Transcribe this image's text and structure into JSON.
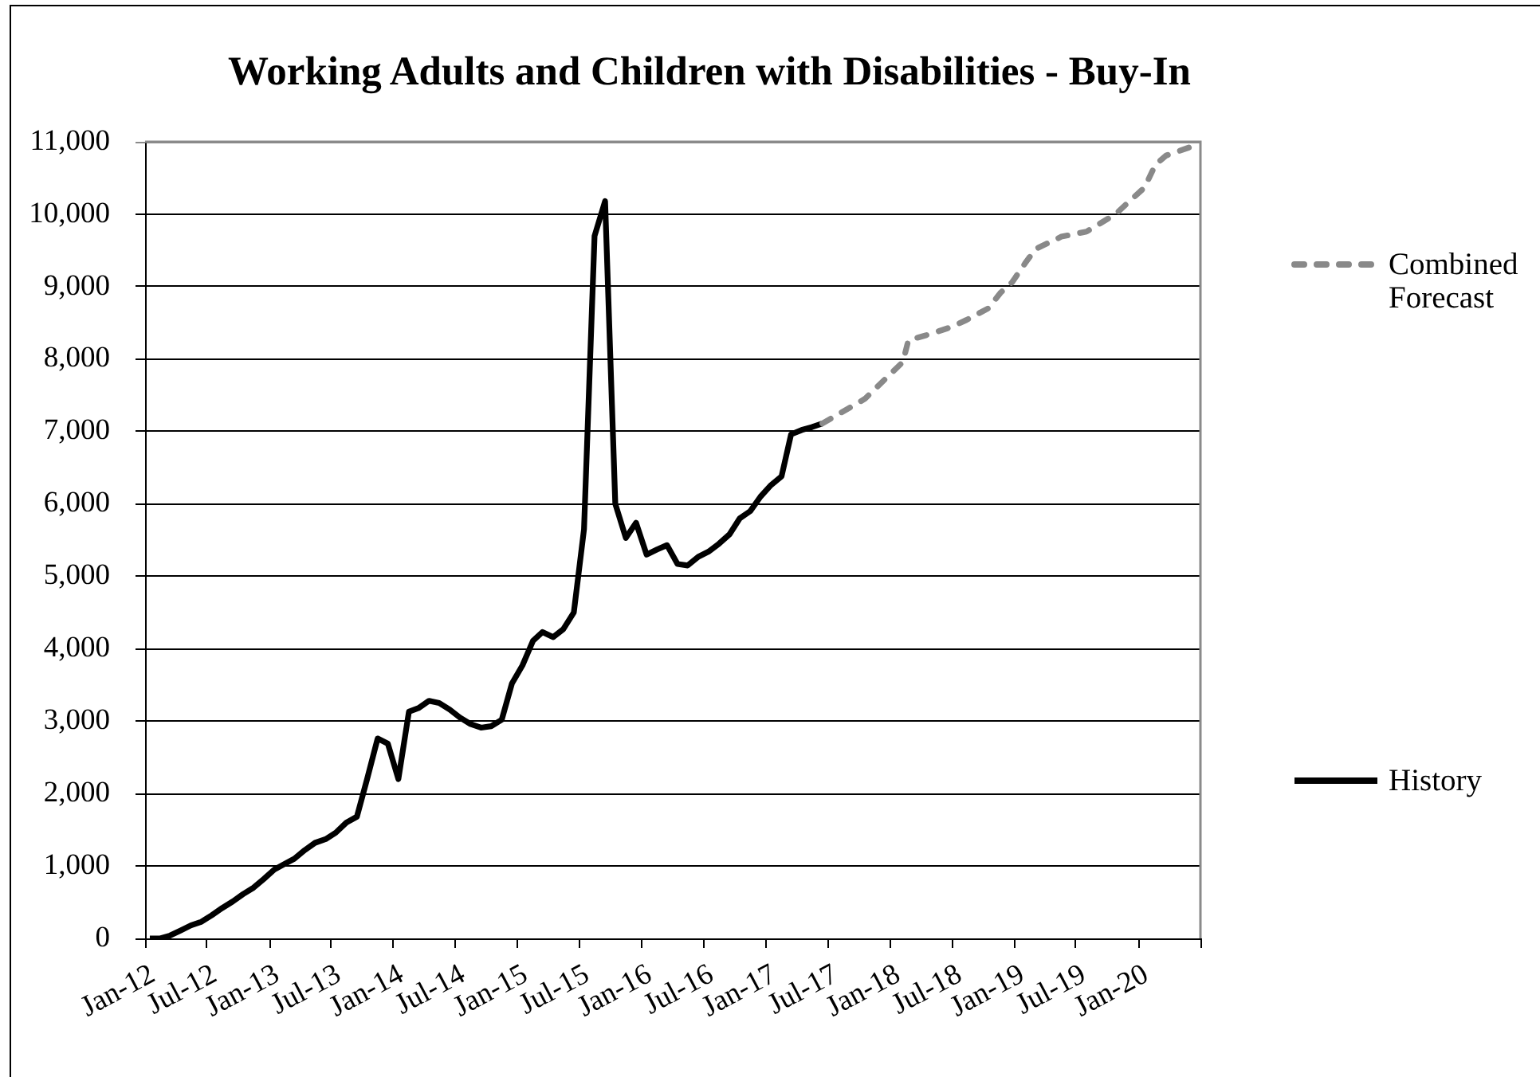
{
  "chart_data": {
    "type": "line",
    "title": "Working Adults and Children with Disabilities - Buy-In",
    "xlim": [
      "2012-01",
      "2020-07"
    ],
    "xticks": [
      {
        "value": "2012-01",
        "label": "Jan-12"
      },
      {
        "value": "2012-07",
        "label": "Jul-12"
      },
      {
        "value": "2013-01",
        "label": "Jan-13"
      },
      {
        "value": "2013-07",
        "label": "Jul-13"
      },
      {
        "value": "2014-01",
        "label": "Jan-14"
      },
      {
        "value": "2014-07",
        "label": "Jul-14"
      },
      {
        "value": "2015-01",
        "label": "Jan-15"
      },
      {
        "value": "2015-07",
        "label": "Jul-15"
      },
      {
        "value": "2016-01",
        "label": "Jan-16"
      },
      {
        "value": "2016-07",
        "label": "Jul-16"
      },
      {
        "value": "2017-01",
        "label": "Jan-17"
      },
      {
        "value": "2017-07",
        "label": "Jul-17"
      },
      {
        "value": "2018-01",
        "label": "Jan-18"
      },
      {
        "value": "2018-07",
        "label": "Jul-18"
      },
      {
        "value": "2019-01",
        "label": "Jan-19"
      },
      {
        "value": "2019-07",
        "label": "Jul-19"
      },
      {
        "value": "2020-01",
        "label": "Jan-20"
      },
      {
        "value": "2020-07",
        "label": null
      }
    ],
    "ylim": [
      0,
      11000
    ],
    "yticks": [
      0,
      {
        "value": 1000,
        "label": "1,000"
      },
      {
        "value": 2000,
        "label": "2,000"
      },
      {
        "value": 3000,
        "label": "3,000"
      },
      {
        "value": 4000,
        "label": "4,000"
      },
      {
        "value": 5000,
        "label": "5,000"
      },
      {
        "value": 6000,
        "label": "6,000"
      },
      {
        "value": 7000,
        "label": "7,000"
      },
      {
        "value": 8000,
        "label": "8,000"
      },
      {
        "value": 9000,
        "label": "9,000"
      },
      {
        "value": 10000,
        "label": "10,000"
      },
      {
        "value": 11000,
        "label": "11,000"
      }
    ],
    "grid": "y",
    "legend": "right",
    "marker": "none",
    "series": [
      {
        "name": "Combined Forecast",
        "color": "#898989",
        "line_style": "dashed",
        "x": [
          "2017-06-15",
          "2017-10-18",
          "2017-12-29",
          "2018-02-07",
          "2018-02-23",
          "2018-04-17",
          "2018-06-28",
          "2018-08-13",
          "2018-10-16",
          "2018-11-22",
          "2018-12-25",
          "2019-02-01",
          "2019-03-04",
          "2019-05-19",
          "2019-08-01",
          "2019-10-25",
          "2019-12-10",
          "2020-01-19",
          "2020-02-19",
          "2020-03-22",
          "2020-05-28"
        ],
        "values": [
          7110,
          7450,
          7780,
          7960,
          8260,
          8330,
          8440,
          8540,
          8700,
          8920,
          9060,
          9320,
          9520,
          9690,
          9760,
          10000,
          10200,
          10370,
          10680,
          10810,
          10920
        ]
      },
      {
        "name": "History",
        "color": "#000000",
        "line_style": "solid",
        "x": [
          "2012-01-15",
          "2012-02-15",
          "2012-03-15",
          "2012-04-15",
          "2012-05-15",
          "2012-06-15",
          "2012-07-15",
          "2012-08-15",
          "2012-09-15",
          "2012-10-15",
          "2012-11-15",
          "2012-12-15",
          "2013-01-15",
          "2013-02-15",
          "2013-03-15",
          "2013-04-15",
          "2013-05-15",
          "2013-06-15",
          "2013-07-15",
          "2013-08-15",
          "2013-09-15",
          "2013-10-15",
          "2013-11-15",
          "2013-12-15",
          "2014-01-15",
          "2014-02-15",
          "2014-03-15",
          "2014-04-15",
          "2014-05-15",
          "2014-06-15",
          "2014-07-15",
          "2014-08-15",
          "2014-09-15",
          "2014-10-15",
          "2014-11-15",
          "2014-12-15",
          "2015-01-15",
          "2015-02-15",
          "2015-03-15",
          "2015-04-15",
          "2015-05-15",
          "2015-06-15",
          "2015-07-15",
          "2015-08-15",
          "2015-09-15",
          "2015-10-15",
          "2015-11-15",
          "2015-12-15",
          "2016-01-15",
          "2016-02-15",
          "2016-03-15",
          "2016-04-15",
          "2016-05-15",
          "2016-06-15",
          "2016-07-15",
          "2016-08-15",
          "2016-09-15",
          "2016-10-15",
          "2016-11-15",
          "2016-12-15",
          "2017-01-15",
          "2017-02-15",
          "2017-03-15",
          "2017-04-15",
          "2017-05-15",
          "2017-06-15"
        ],
        "values": [
          0,
          0,
          40,
          110,
          180,
          230,
          320,
          420,
          510,
          610,
          700,
          820,
          950,
          1030,
          1100,
          1220,
          1320,
          1370,
          1460,
          1600,
          1680,
          2200,
          2760,
          2690,
          2200,
          3130,
          3180,
          3280,
          3250,
          3160,
          3050,
          2960,
          2910,
          2930,
          3020,
          3520,
          3770,
          4110,
          4230,
          4160,
          4270,
          4500,
          5650,
          9700,
          10180,
          6000,
          5530,
          5740,
          5300,
          5370,
          5430,
          5170,
          5150,
          5270,
          5340,
          5450,
          5580,
          5800,
          5900,
          6100,
          6260,
          6380,
          6960,
          7020,
          7060,
          7110
        ]
      }
    ]
  }
}
